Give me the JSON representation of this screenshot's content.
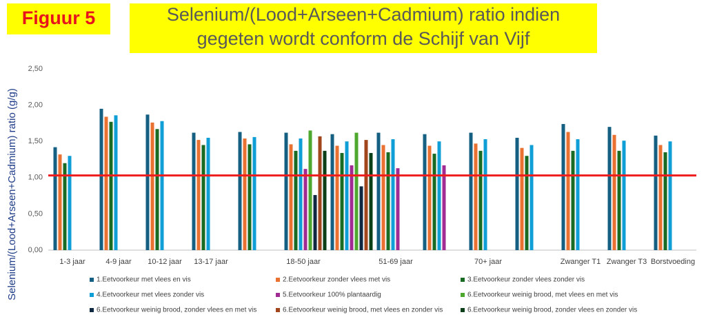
{
  "chart_data": {
    "type": "bar",
    "badge": "Figuur 5",
    "title": [
      "Selenium/(Lood+Arseen+Cadmium) ratio indien",
      "gegeten wordt conform de Schijf van Vijf"
    ],
    "y_label": "Selenium/(Lood+Arseen+Cadmium) ratio  (g/g)",
    "categories": [
      "1-3 jaar",
      "4-9 jaar",
      "10-12 jaar",
      "13-17 jaar",
      null,
      "18-50 jaar",
      null,
      "51-69 jaar",
      null,
      "70+ jaar",
      null,
      "Zwanger T1",
      "Zwanger T3",
      "Borstvoeding"
    ],
    "series": [
      {
        "name": "1.Eetvoorkeur met vlees en vis",
        "color": "#156082",
        "values": [
          1.42,
          1.95,
          1.87,
          1.62,
          1.63,
          1.62,
          1.6,
          1.62,
          1.6,
          1.62,
          1.55,
          1.74,
          1.7,
          1.58
        ]
      },
      {
        "name": "2.Eetvoorkeur zonder vlees met vis",
        "color": "#e97132",
        "values": [
          1.32,
          1.84,
          1.76,
          1.52,
          1.54,
          1.46,
          1.44,
          1.45,
          1.44,
          1.47,
          1.41,
          1.63,
          1.59,
          1.45
        ]
      },
      {
        "name": "3.Eetvoorkeur zonder vlees zonder vis",
        "color": "#196b24",
        "values": [
          1.2,
          1.77,
          1.67,
          1.45,
          1.46,
          1.37,
          1.34,
          1.35,
          1.33,
          1.37,
          1.3,
          1.37,
          1.37,
          1.35
        ]
      },
      {
        "name": "4.Eetvoorkeur met vlees zonder vis",
        "color": "#0f9ed5",
        "values": [
          1.3,
          1.86,
          1.78,
          1.55,
          1.56,
          1.54,
          1.5,
          1.53,
          1.5,
          1.53,
          1.45,
          1.53,
          1.51,
          1.5
        ]
      },
      {
        "name": "5.Eetvoorkeur 100% plantaardig",
        "color": "#a02b93",
        "values": [
          null,
          null,
          null,
          null,
          null,
          1.12,
          1.17,
          1.13,
          1.17,
          null,
          null,
          null,
          null,
          null
        ]
      },
      {
        "name": "6.Eetvoorkeur weinig brood, met vlees en met vis",
        "color": "#4ea72e",
        "values": [
          null,
          null,
          null,
          null,
          null,
          1.65,
          1.62,
          null,
          null,
          null,
          null,
          null,
          null,
          null
        ]
      },
      {
        "name": "6.Eetvoorkeur weinig brood, zonder vlees en met vis",
        "color": "#0e2841",
        "values": [
          null,
          null,
          null,
          null,
          null,
          0.76,
          0.88,
          null,
          null,
          null,
          null,
          null,
          null,
          null
        ]
      },
      {
        "name": "6.Eetvoorkeur weinig brood, met vlees en zonder vis",
        "color": "#a0451c",
        "values": [
          null,
          null,
          null,
          null,
          null,
          1.57,
          1.52,
          null,
          null,
          null,
          null,
          null,
          null,
          null
        ]
      },
      {
        "name": "6.Eetvoorkeur weinig brood, zonder vlees en zonder vis",
        "color": "#0b3f17",
        "values": [
          null,
          null,
          null,
          null,
          null,
          1.37,
          1.34,
          null,
          null,
          null,
          null,
          null,
          null,
          null
        ]
      }
    ],
    "reference_line": {
      "value": 1.03,
      "color": "#ee1c1c"
    },
    "ylim": [
      0,
      2.5
    ],
    "yticks": [
      {
        "value": 0,
        "label": "0,00"
      },
      {
        "value": 0.5,
        "label": "0,50"
      },
      {
        "value": 1,
        "label": "1,00"
      },
      {
        "value": 1.5,
        "label": "1,50"
      },
      {
        "value": 2,
        "label": "2,00"
      },
      {
        "value": 2.5,
        "label": "2,50"
      }
    ],
    "grid": false,
    "legend": "bottom"
  }
}
